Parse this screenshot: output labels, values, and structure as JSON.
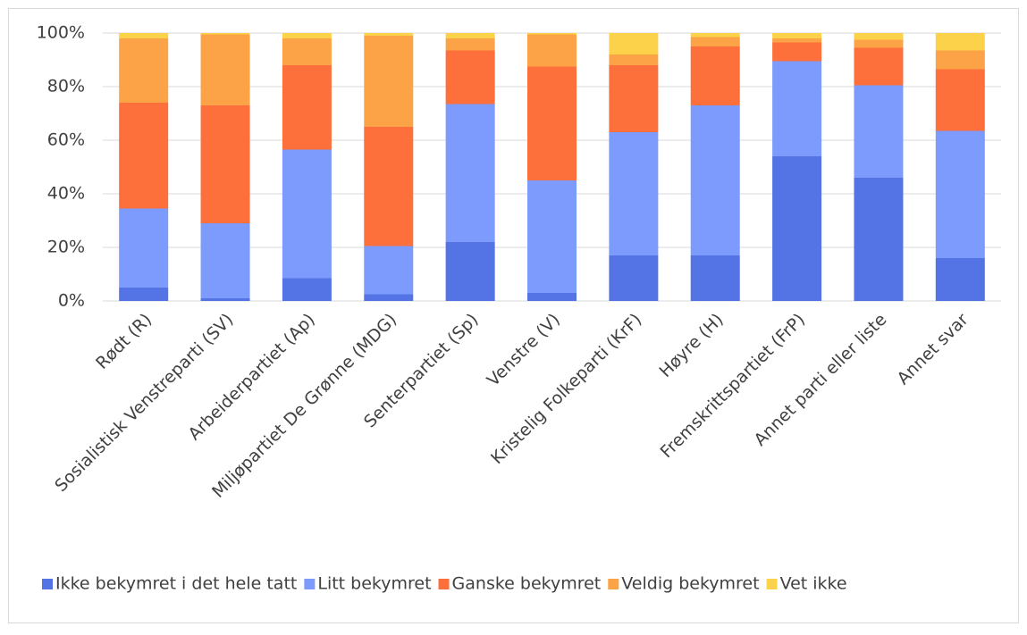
{
  "chart_data": {
    "type": "stacked_bar",
    "categories": [
      "Rødt (R)",
      "Sosialistisk Venstreparti (SV)",
      "Arbeiderpartiet (Ap)",
      "Miljøpartiet De Grønne (MDG)",
      "Senterpartiet (Sp)",
      "Venstre (V)",
      "Kristelig Folkeparti (KrF)",
      "Høyre (H)",
      "Fremskrittspartiet (FrP)",
      "Annet parti eller liste",
      "Annet svar"
    ],
    "series": [
      {
        "name": "Ikke bekymret i det hele tatt",
        "color": "#5474e6",
        "values": [
          5,
          1,
          8.5,
          2.5,
          22,
          3,
          17,
          17,
          54,
          46,
          16
        ]
      },
      {
        "name": "Litt bekymret",
        "color": "#7c9bfc",
        "values": [
          29.5,
          28,
          48,
          18,
          51.5,
          42,
          46,
          56,
          35.5,
          34.5,
          47.5
        ]
      },
      {
        "name": "Ganske bekymret",
        "color": "#fd6f3b",
        "values": [
          39.5,
          44,
          31.5,
          44.5,
          20,
          42.5,
          25,
          22,
          7,
          14,
          23
        ]
      },
      {
        "name": "Veldig bekymret",
        "color": "#fda347",
        "values": [
          24,
          26.5,
          10,
          34,
          4.5,
          12,
          4,
          3.5,
          1.5,
          3,
          7
        ]
      },
      {
        "name": "Vet ikke",
        "color": "#fdd24b",
        "values": [
          2,
          0.5,
          2,
          1,
          2,
          0.5,
          8,
          1.5,
          2,
          2.5,
          6.5
        ]
      }
    ],
    "ylim": [
      0,
      100
    ],
    "yticks": [
      {
        "value": 0,
        "label": "0%"
      },
      {
        "value": 20,
        "label": "20%"
      },
      {
        "value": 40,
        "label": "40%"
      },
      {
        "value": 60,
        "label": "60%"
      },
      {
        "value": 80,
        "label": "80%"
      },
      {
        "value": 100,
        "label": "100%"
      }
    ],
    "grid": true,
    "legend": "bottom"
  }
}
